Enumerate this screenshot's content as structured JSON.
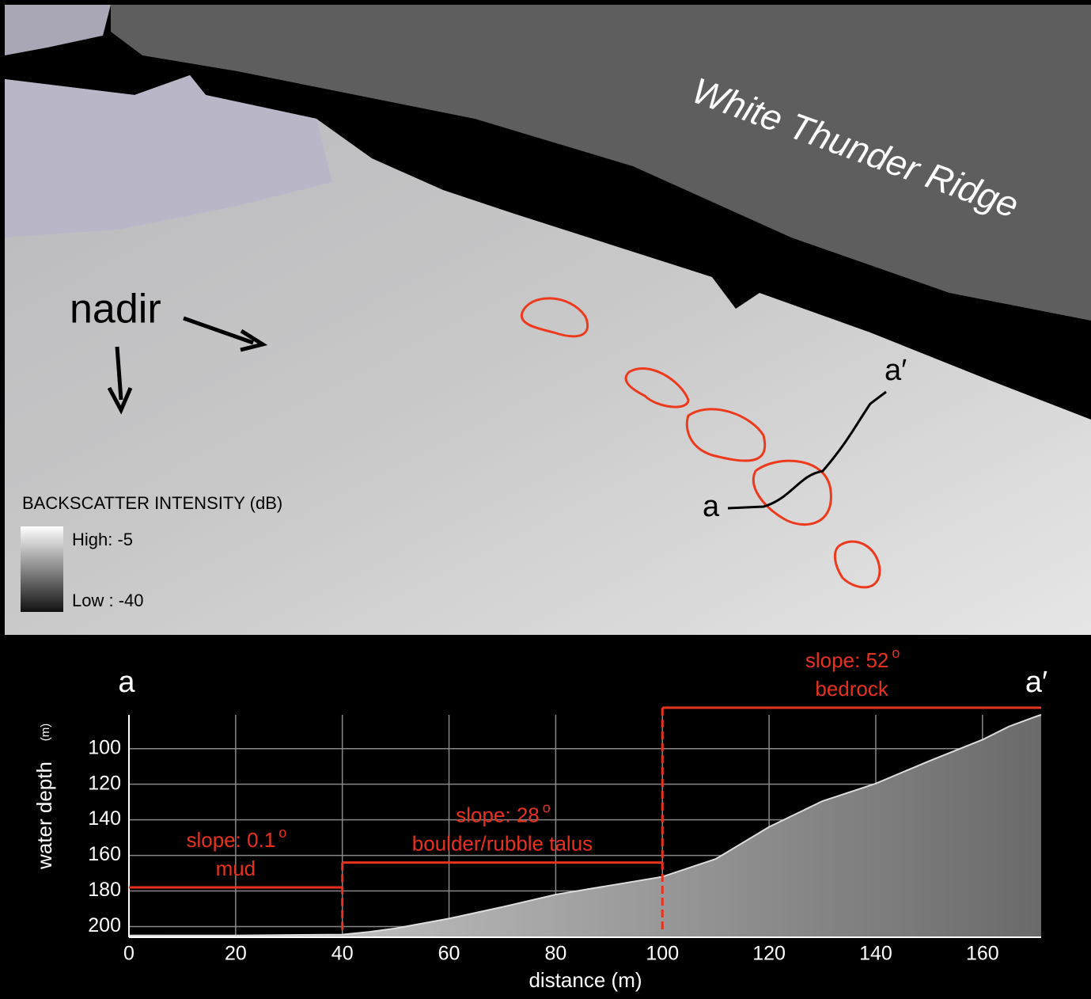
{
  "image": {
    "ridge_label": "White Thunder Ridge",
    "nadir_label": "nadir",
    "legend": {
      "title": "BACKSCATTER INTENSITY (dB)",
      "high": "High: -5",
      "low": "Low : -40"
    },
    "profile_start": "a",
    "profile_end": "a′"
  },
  "chart_data": {
    "type": "area",
    "start_label": "a",
    "end_label": "a′",
    "x_label": "distance (m)",
    "y_label": "water depth",
    "y_unit": "(m)",
    "x": [
      0,
      20,
      40,
      45,
      50,
      60,
      70,
      80,
      90,
      100,
      110,
      120,
      130,
      140,
      150,
      160,
      165,
      170,
      171
    ],
    "series": [
      {
        "color": "#dddddd",
        "values": [
          205,
          205,
          204.5,
          203,
          201,
          195.5,
          189,
          182,
          177,
          172,
          162,
          144,
          129.5,
          119.6,
          107,
          95,
          87.5,
          82,
          81
        ]
      }
    ],
    "xlim": [
      0,
      171
    ],
    "ylim": [
      206,
      81
    ],
    "xticks": [
      0,
      20,
      40,
      60,
      80,
      100,
      120,
      140,
      160
    ],
    "yticks": [
      100,
      120,
      140,
      160,
      180,
      200
    ],
    "grid": true,
    "zones": [
      {
        "slope": "slope: 0.1",
        "sup": "o",
        "material": "mud",
        "x": [
          0,
          40
        ],
        "depth": 178,
        "color": "#e8321e"
      },
      {
        "slope": "slope: 28",
        "sup": "o",
        "material": "boulder/rubble talus",
        "x": [
          40,
          100
        ],
        "depth": 164,
        "color": "#e8321e"
      },
      {
        "slope": "slope: 52",
        "sup": "o",
        "material": "bedrock",
        "x": [
          100,
          171
        ],
        "depth": 77,
        "color": "#e8321e"
      }
    ]
  }
}
